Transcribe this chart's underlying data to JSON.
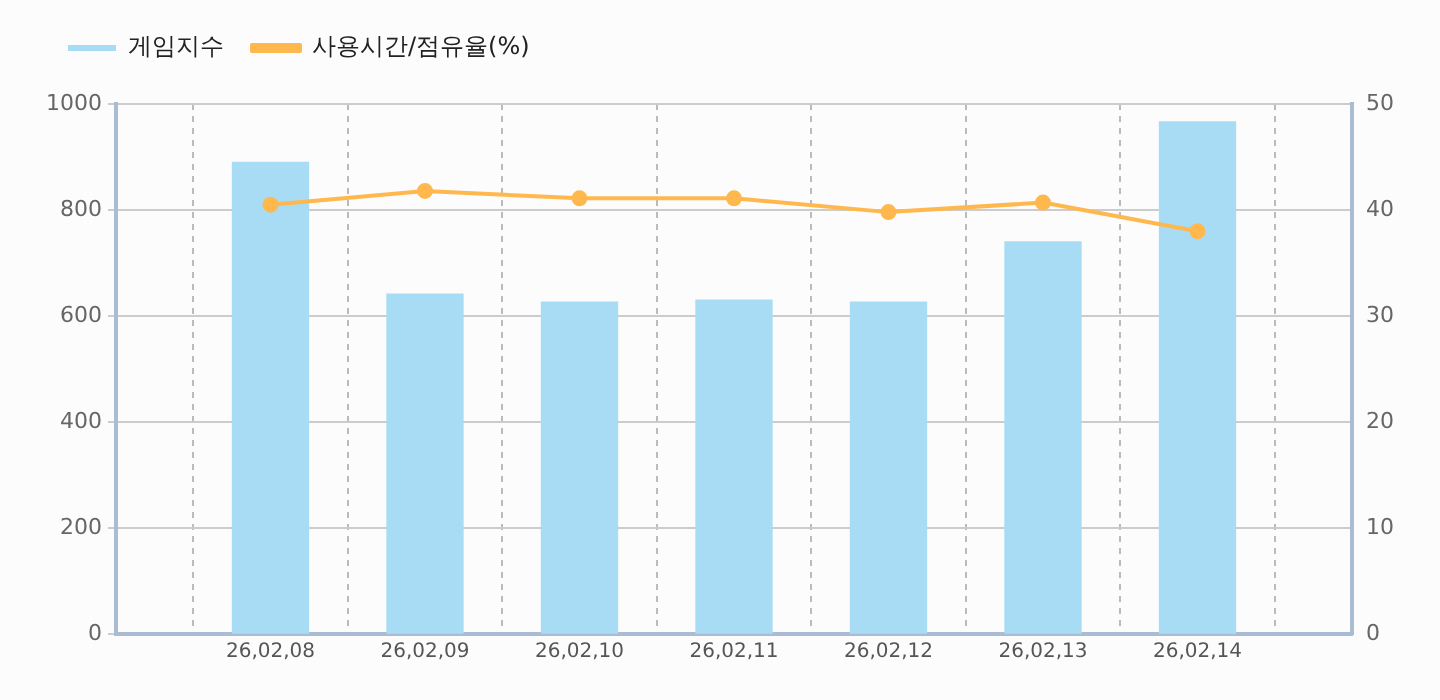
{
  "chart_data": {
    "type": "bar",
    "categories": [
      null,
      "26,02,08",
      "26,02,09",
      "26,02,10",
      "26,02,11",
      "26,02,12",
      "26,02,13",
      "26,02,14",
      null
    ],
    "series": [
      {
        "name": "게임지수",
        "color": "#a8dcf5",
        "values": [
          null,
          890,
          641,
          626,
          630,
          626,
          740,
          966,
          null
        ]
      },
      {
        "name": "사용시간/점유율(%)",
        "type": "line",
        "axis": "y2",
        "color": "#ffb84d",
        "values": [
          null,
          40.5,
          41.8,
          41.1,
          41.1,
          39.8,
          40.7,
          38.0,
          null
        ]
      }
    ],
    "ylim": [
      0,
      1000
    ],
    "yticks": [
      0,
      200,
      400,
      600,
      800,
      1000
    ],
    "y2lim": [
      0,
      50
    ],
    "y2ticks": [
      0,
      10,
      20,
      30,
      40,
      50
    ],
    "grid": true,
    "legend": "top left",
    "marker": "circle",
    "line_style": "solid"
  }
}
